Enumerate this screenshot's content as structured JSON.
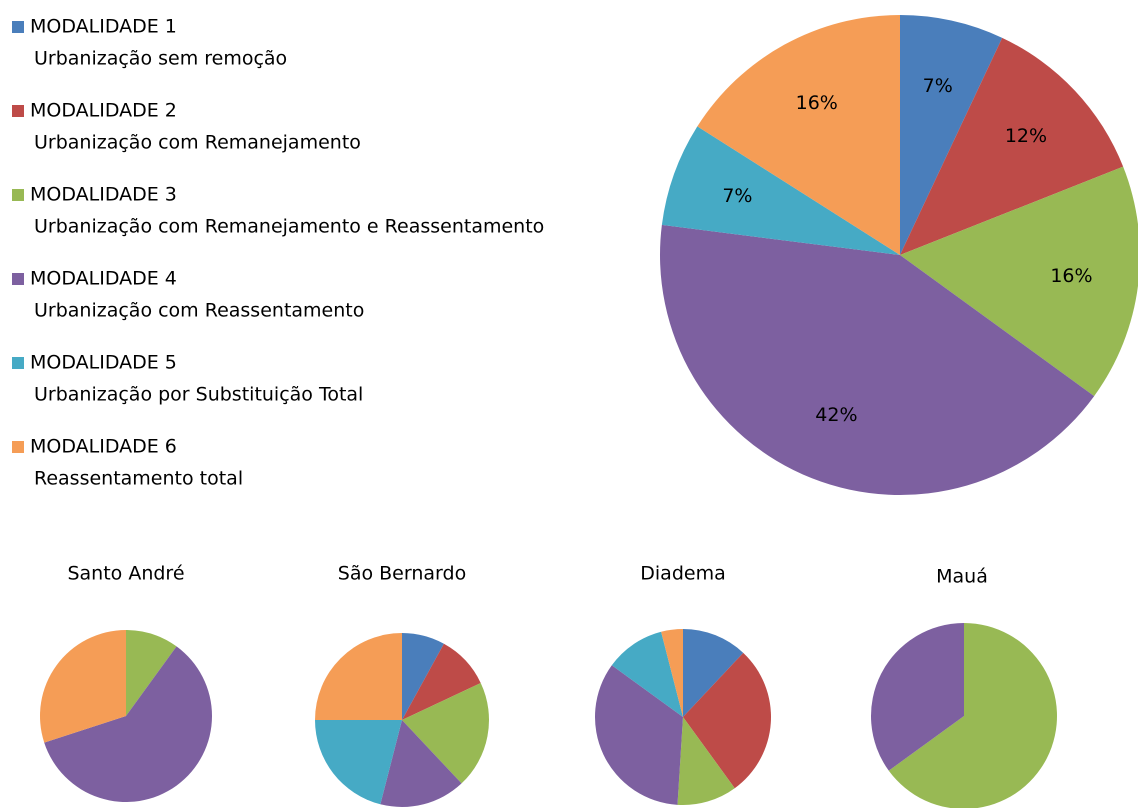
{
  "chart_data": [
    {
      "type": "pie",
      "categories": [
        "MODALIDADE 1",
        "MODALIDADE 2",
        "MODALIDADE 3",
        "MODALIDADE 4",
        "MODALIDADE 5",
        "MODALIDADE 6"
      ],
      "category_descriptions": [
        "Urbanização sem remoção",
        "Urbanização com Remanejamento",
        "Urbanização com Remanejamento e Reassentamento",
        "Urbanização com Reassentamento",
        "Urbanização por Substituição Total",
        "Reassentamento total"
      ],
      "values": [
        7,
        12,
        16,
        42,
        7,
        16
      ],
      "value_labels": [
        "7%",
        "12%",
        "16%",
        "42%",
        "7%",
        "16%"
      ],
      "colors": [
        "#4a7ebb",
        "#be4b48",
        "#98b954",
        "#7d60a0",
        "#46aac5",
        "#f59d56"
      ]
    },
    {
      "type": "pie",
      "title": "Santo André",
      "values": [
        0,
        0,
        10,
        60,
        0,
        30
      ],
      "colors": [
        "#4a7ebb",
        "#be4b48",
        "#98b954",
        "#7d60a0",
        "#46aac5",
        "#f59d56"
      ]
    },
    {
      "type": "pie",
      "title": "São Bernardo",
      "values": [
        8,
        10,
        20,
        16,
        21,
        25
      ],
      "colors": [
        "#4a7ebb",
        "#be4b48",
        "#98b954",
        "#7d60a0",
        "#46aac5",
        "#f59d56"
      ]
    },
    {
      "type": "pie",
      "title": "Diadema",
      "values": [
        12,
        28,
        11,
        34,
        11,
        4
      ],
      "colors": [
        "#4a7ebb",
        "#be4b48",
        "#98b954",
        "#7d60a0",
        "#46aac5",
        "#f59d56"
      ]
    },
    {
      "type": "pie",
      "title": "Mauá",
      "values": [
        0,
        0,
        65,
        35,
        0,
        0
      ],
      "colors": [
        "#4a7ebb",
        "#be4b48",
        "#98b954",
        "#7d60a0",
        "#46aac5",
        "#f59d56"
      ]
    }
  ]
}
